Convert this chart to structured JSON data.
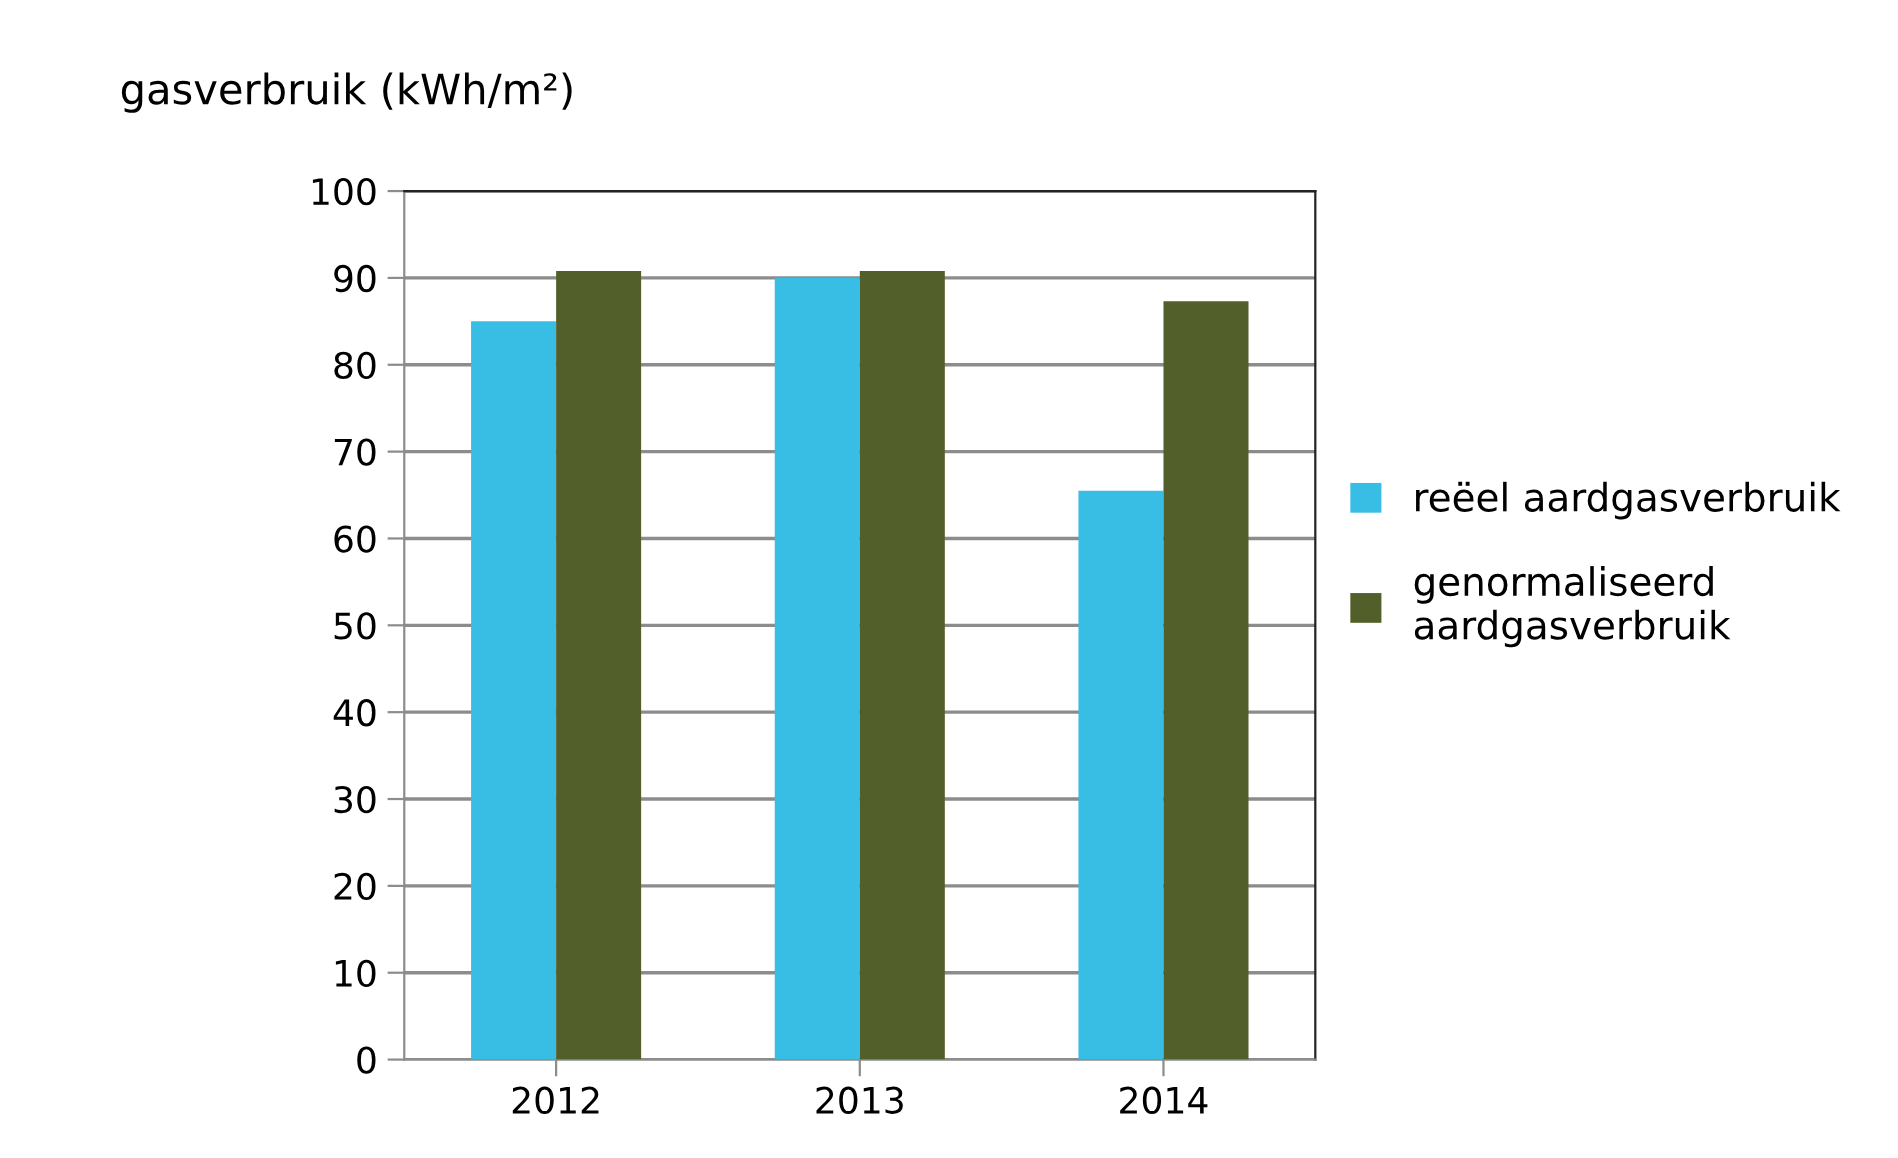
{
  "chart_data": {
    "type": "bar",
    "ylabel": "gasverbruik (kWh/m²)",
    "categories": [
      "2012",
      "2013",
      "2014"
    ],
    "series": [
      {
        "name": "reëel aardgasverbruik",
        "color": "#38bde4",
        "values": [
          85,
          90,
          65.5
        ]
      },
      {
        "name": "genormaliseerd\naardgasverbruik",
        "color": "#525f2a",
        "values": [
          90.8,
          90.8,
          87.3
        ]
      }
    ],
    "ylim": [
      0,
      100
    ],
    "yticks": [
      0,
      10,
      20,
      30,
      40,
      50,
      60,
      70,
      80,
      90,
      100
    ],
    "grid": "y",
    "legend": "right"
  }
}
